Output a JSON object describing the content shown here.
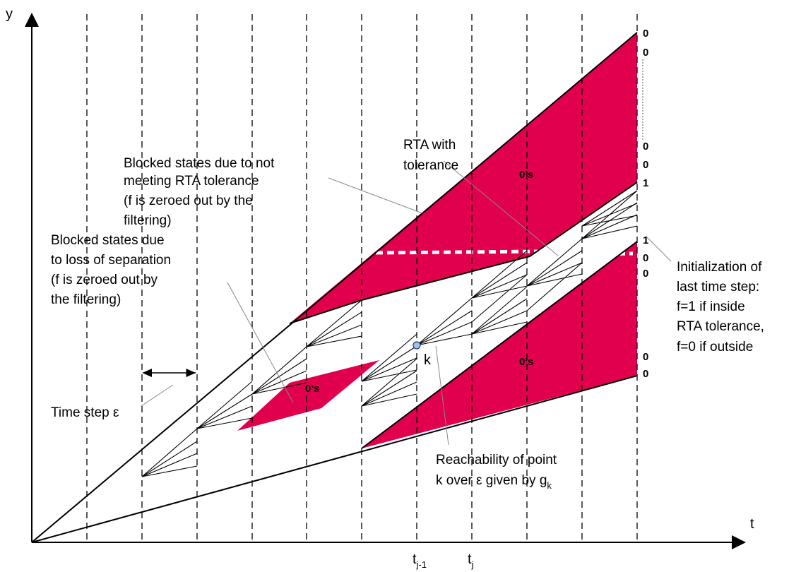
{
  "axes": {
    "y_label": "y",
    "x_label": "t",
    "tick_tj1_main": "t",
    "tick_tj1_sub": "j-1",
    "tick_tj_main": "t",
    "tick_tj_sub": "j"
  },
  "annotations": {
    "rta_tolerance_line1": "Blocked states due to not",
    "rta_tolerance_line2": "meeting RTA tolerance",
    "rta_tolerance_line3": "(f is zeroed out by the",
    "rta_tolerance_line4": "filtering)",
    "rta_with_line1": "RTA with",
    "rta_with_line2": "tolerance",
    "loss_sep_line1": "Blocked states due",
    "loss_sep_line2": "to loss of separation",
    "loss_sep_line3": "(f is zeroed out by",
    "loss_sep_line4": "the filtering)",
    "time_step": "Time step ε",
    "point_k": "k",
    "reach_line1": "Reachability of point",
    "reach_line2_main": "k over ε given by g",
    "reach_line2_sub": "k",
    "init_line1": "Initialization of",
    "init_line2": "last time step:",
    "init_line3": "f=1 if inside",
    "init_line4": "RTA tolerance,",
    "init_line5": "f=0 if outside"
  },
  "region_labels": {
    "upper": "0’s",
    "middle": "0’s",
    "lower": "0’s"
  },
  "boundary_values": [
    "0",
    "0",
    "0",
    "0",
    "1",
    "1",
    "0",
    "0",
    "0",
    "0"
  ],
  "colors": {
    "blocked_fill": "#E0004D",
    "line": "#000000",
    "point_fill": "#9DC3E6"
  }
}
